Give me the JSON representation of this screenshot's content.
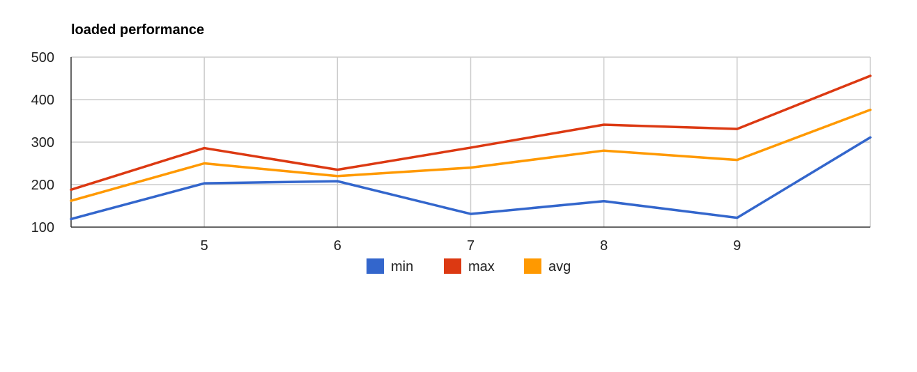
{
  "chart_data": {
    "type": "line",
    "title": "loaded performance",
    "xlabel": "",
    "ylabel": "",
    "x": [
      4,
      5,
      6,
      7,
      8,
      9,
      10
    ],
    "x_ticks": [
      5,
      6,
      7,
      8,
      9
    ],
    "x_tick_labels": [
      "5",
      "6",
      "7",
      "8",
      "9"
    ],
    "xlim": [
      4,
      10
    ],
    "ylim": [
      100,
      500
    ],
    "y_ticks": [
      100,
      200,
      300,
      400,
      500
    ],
    "y_tick_labels": [
      "100",
      "200",
      "300",
      "400",
      "500"
    ],
    "grid": true,
    "legend_position": "bottom",
    "series": [
      {
        "name": "min",
        "color": "#3366cc",
        "values": [
          119,
          203,
          208,
          131,
          161,
          122,
          311
        ]
      },
      {
        "name": "max",
        "color": "#dc3912",
        "values": [
          188,
          286,
          235,
          287,
          341,
          331,
          456
        ]
      },
      {
        "name": "avg",
        "color": "#ff9900",
        "values": [
          162,
          250,
          220,
          240,
          280,
          258,
          376
        ]
      }
    ]
  }
}
